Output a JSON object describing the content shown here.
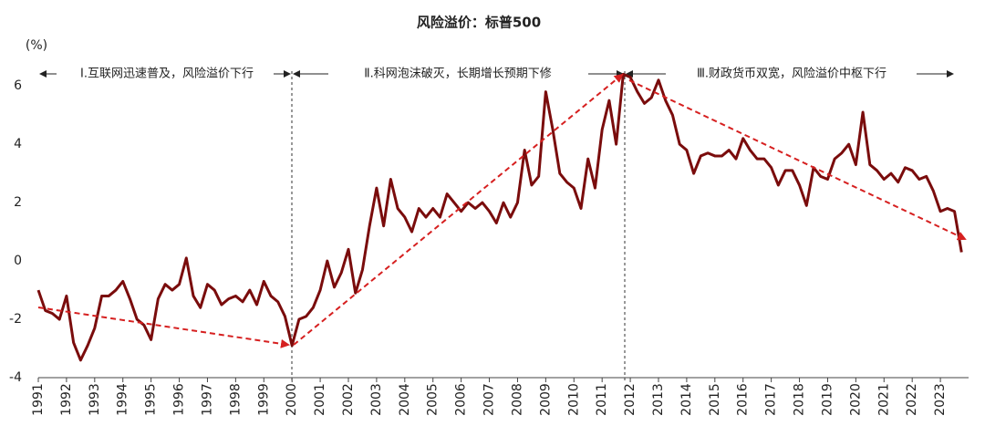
{
  "chart_data": {
    "type": "line",
    "title": "风险溢价：标普500",
    "y_unit": "(%)",
    "annotations": [
      "Ⅰ.互联网迅速普及，风险溢价下行",
      "Ⅱ.科网泡沫破灭，长期增长预期下修",
      "Ⅲ.财政货币双宽，风险溢价中枢下行"
    ],
    "xlim": [
      1991,
      2024
    ],
    "xticks": [
      1991,
      1992,
      1993,
      1994,
      1995,
      1996,
      1997,
      1998,
      1999,
      2000,
      2001,
      2002,
      2003,
      2004,
      2005,
      2006,
      2007,
      2008,
      2009,
      2010,
      2011,
      2012,
      2013,
      2014,
      2015,
      2016,
      2017,
      2018,
      2019,
      2020,
      2021,
      2022,
      2023
    ],
    "ylim": [
      -4,
      6.6
    ],
    "yticks": [
      -4,
      -2,
      0,
      2,
      4,
      6
    ],
    "series": [
      {
        "color": "#7a0c0c",
        "x": [
          1991,
          1991.25,
          1991.5,
          1991.75,
          1992,
          1992.25,
          1992.5,
          1992.75,
          1993,
          1993.25,
          1993.5,
          1993.75,
          1994,
          1994.25,
          1994.5,
          1994.75,
          1995,
          1995.25,
          1995.5,
          1995.75,
          1996,
          1996.25,
          1996.5,
          1996.75,
          1997,
          1997.25,
          1997.5,
          1997.75,
          1998,
          1998.25,
          1998.5,
          1998.75,
          1999,
          1999.25,
          1999.5,
          1999.75,
          2000,
          2000.25,
          2000.5,
          2000.75,
          2001,
          2001.25,
          2001.5,
          2001.75,
          2002,
          2002.25,
          2002.5,
          2002.75,
          2003,
          2003.25,
          2003.5,
          2003.75,
          2004,
          2004.25,
          2004.5,
          2004.75,
          2005,
          2005.25,
          2005.5,
          2005.75,
          2006,
          2006.25,
          2006.5,
          2006.75,
          2007,
          2007.25,
          2007.5,
          2007.75,
          2008,
          2008.25,
          2008.5,
          2008.75,
          2009,
          2009.25,
          2009.5,
          2009.75,
          2010,
          2010.25,
          2010.5,
          2010.75,
          2011,
          2011.25,
          2011.5,
          2011.75,
          2012,
          2012.25,
          2012.5,
          2012.75,
          2013,
          2013.25,
          2013.5,
          2013.75,
          2014,
          2014.25,
          2014.5,
          2014.75,
          2015,
          2015.25,
          2015.5,
          2015.75,
          2016,
          2016.25,
          2016.5,
          2016.75,
          2017,
          2017.25,
          2017.5,
          2017.75,
          2018,
          2018.25,
          2018.5,
          2018.75,
          2019,
          2019.25,
          2019.5,
          2019.75,
          2020,
          2020.25,
          2020.5,
          2020.75,
          2021,
          2021.25,
          2021.5,
          2021.75,
          2022,
          2022.25,
          2022.5,
          2022.75,
          2023,
          2023.25,
          2023.5,
          2023.75
        ],
        "values": [
          -1.0,
          -1.7,
          -1.8,
          -2.0,
          -1.2,
          -2.8,
          -3.4,
          -2.9,
          -2.3,
          -1.2,
          -1.2,
          -1.0,
          -0.7,
          -1.3,
          -2.0,
          -2.2,
          -2.7,
          -1.3,
          -0.8,
          -1.0,
          -0.8,
          0.1,
          -1.2,
          -1.6,
          -0.8,
          -1.0,
          -1.5,
          -1.3,
          -1.2,
          -1.4,
          -1.0,
          -1.5,
          -0.7,
          -1.2,
          -1.4,
          -1.9,
          -2.9,
          -2.0,
          -1.9,
          -1.6,
          -1.0,
          0.0,
          -0.9,
          -0.4,
          0.4,
          -1.1,
          -0.3,
          1.2,
          2.5,
          1.2,
          2.8,
          1.8,
          1.5,
          1.0,
          1.8,
          1.5,
          1.8,
          1.5,
          2.3,
          2.0,
          1.7,
          2.0,
          1.8,
          2.0,
          1.7,
          1.3,
          2.0,
          1.5,
          2.0,
          3.8,
          2.6,
          2.9,
          5.8,
          4.5,
          3.0,
          2.7,
          2.5,
          1.8,
          3.5,
          2.5,
          4.5,
          5.5,
          4.0,
          6.4,
          6.3,
          5.8,
          5.4,
          5.6,
          6.2,
          5.5,
          5.0,
          4.0,
          3.8,
          3.0,
          3.6,
          3.7,
          3.6,
          3.6,
          3.8,
          3.5,
          4.2,
          3.8,
          3.5,
          3.5,
          3.2,
          2.6,
          3.1,
          3.1,
          2.6,
          1.9,
          3.2,
          2.9,
          2.8,
          3.5,
          3.7,
          4.0,
          3.3,
          5.1,
          3.3,
          3.1,
          2.8,
          3.0,
          2.7,
          3.2,
          3.1,
          2.8,
          2.9,
          2.4,
          1.7,
          1.8,
          1.7,
          0.3
        ]
      }
    ]
  }
}
